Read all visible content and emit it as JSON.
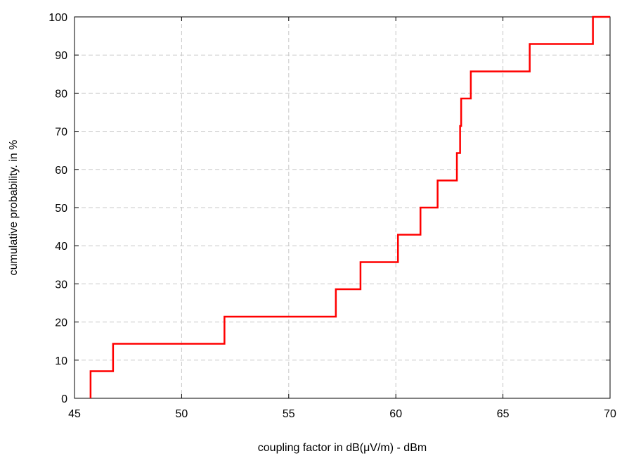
{
  "chart_data": {
    "type": "line",
    "step": true,
    "xlabel": "coupling factor in dB(μV/m) - dBm",
    "ylabel": "cumulative probability. in %",
    "xlim": [
      45,
      70
    ],
    "ylim": [
      0,
      100
    ],
    "xticks": [
      "45",
      "50",
      "55",
      "60",
      "65",
      "70"
    ],
    "yticks": [
      "0",
      "10",
      "20",
      "30",
      "40",
      "50",
      "60",
      "70",
      "80",
      "90",
      "100"
    ],
    "grid": true,
    "color": "#ff0000",
    "series": [
      {
        "x": [
          45.75,
          45.75,
          46.8,
          46.8,
          52.0,
          52.0,
          57.2,
          57.2,
          58.35,
          58.35,
          60.1,
          60.1,
          61.15,
          61.15,
          61.95,
          61.95,
          62.85,
          62.85,
          63.0,
          63.0,
          63.05,
          63.05,
          63.5,
          63.5,
          66.25,
          66.25,
          69.2,
          69.2,
          70.0
        ],
        "y": [
          0,
          7.1,
          7.1,
          14.3,
          14.3,
          21.4,
          21.4,
          28.6,
          28.6,
          35.7,
          35.7,
          42.9,
          42.9,
          50.0,
          50.0,
          57.1,
          57.1,
          64.3,
          64.3,
          71.4,
          71.4,
          78.6,
          78.6,
          85.7,
          85.7,
          92.9,
          92.9,
          100,
          100
        ]
      }
    ]
  }
}
